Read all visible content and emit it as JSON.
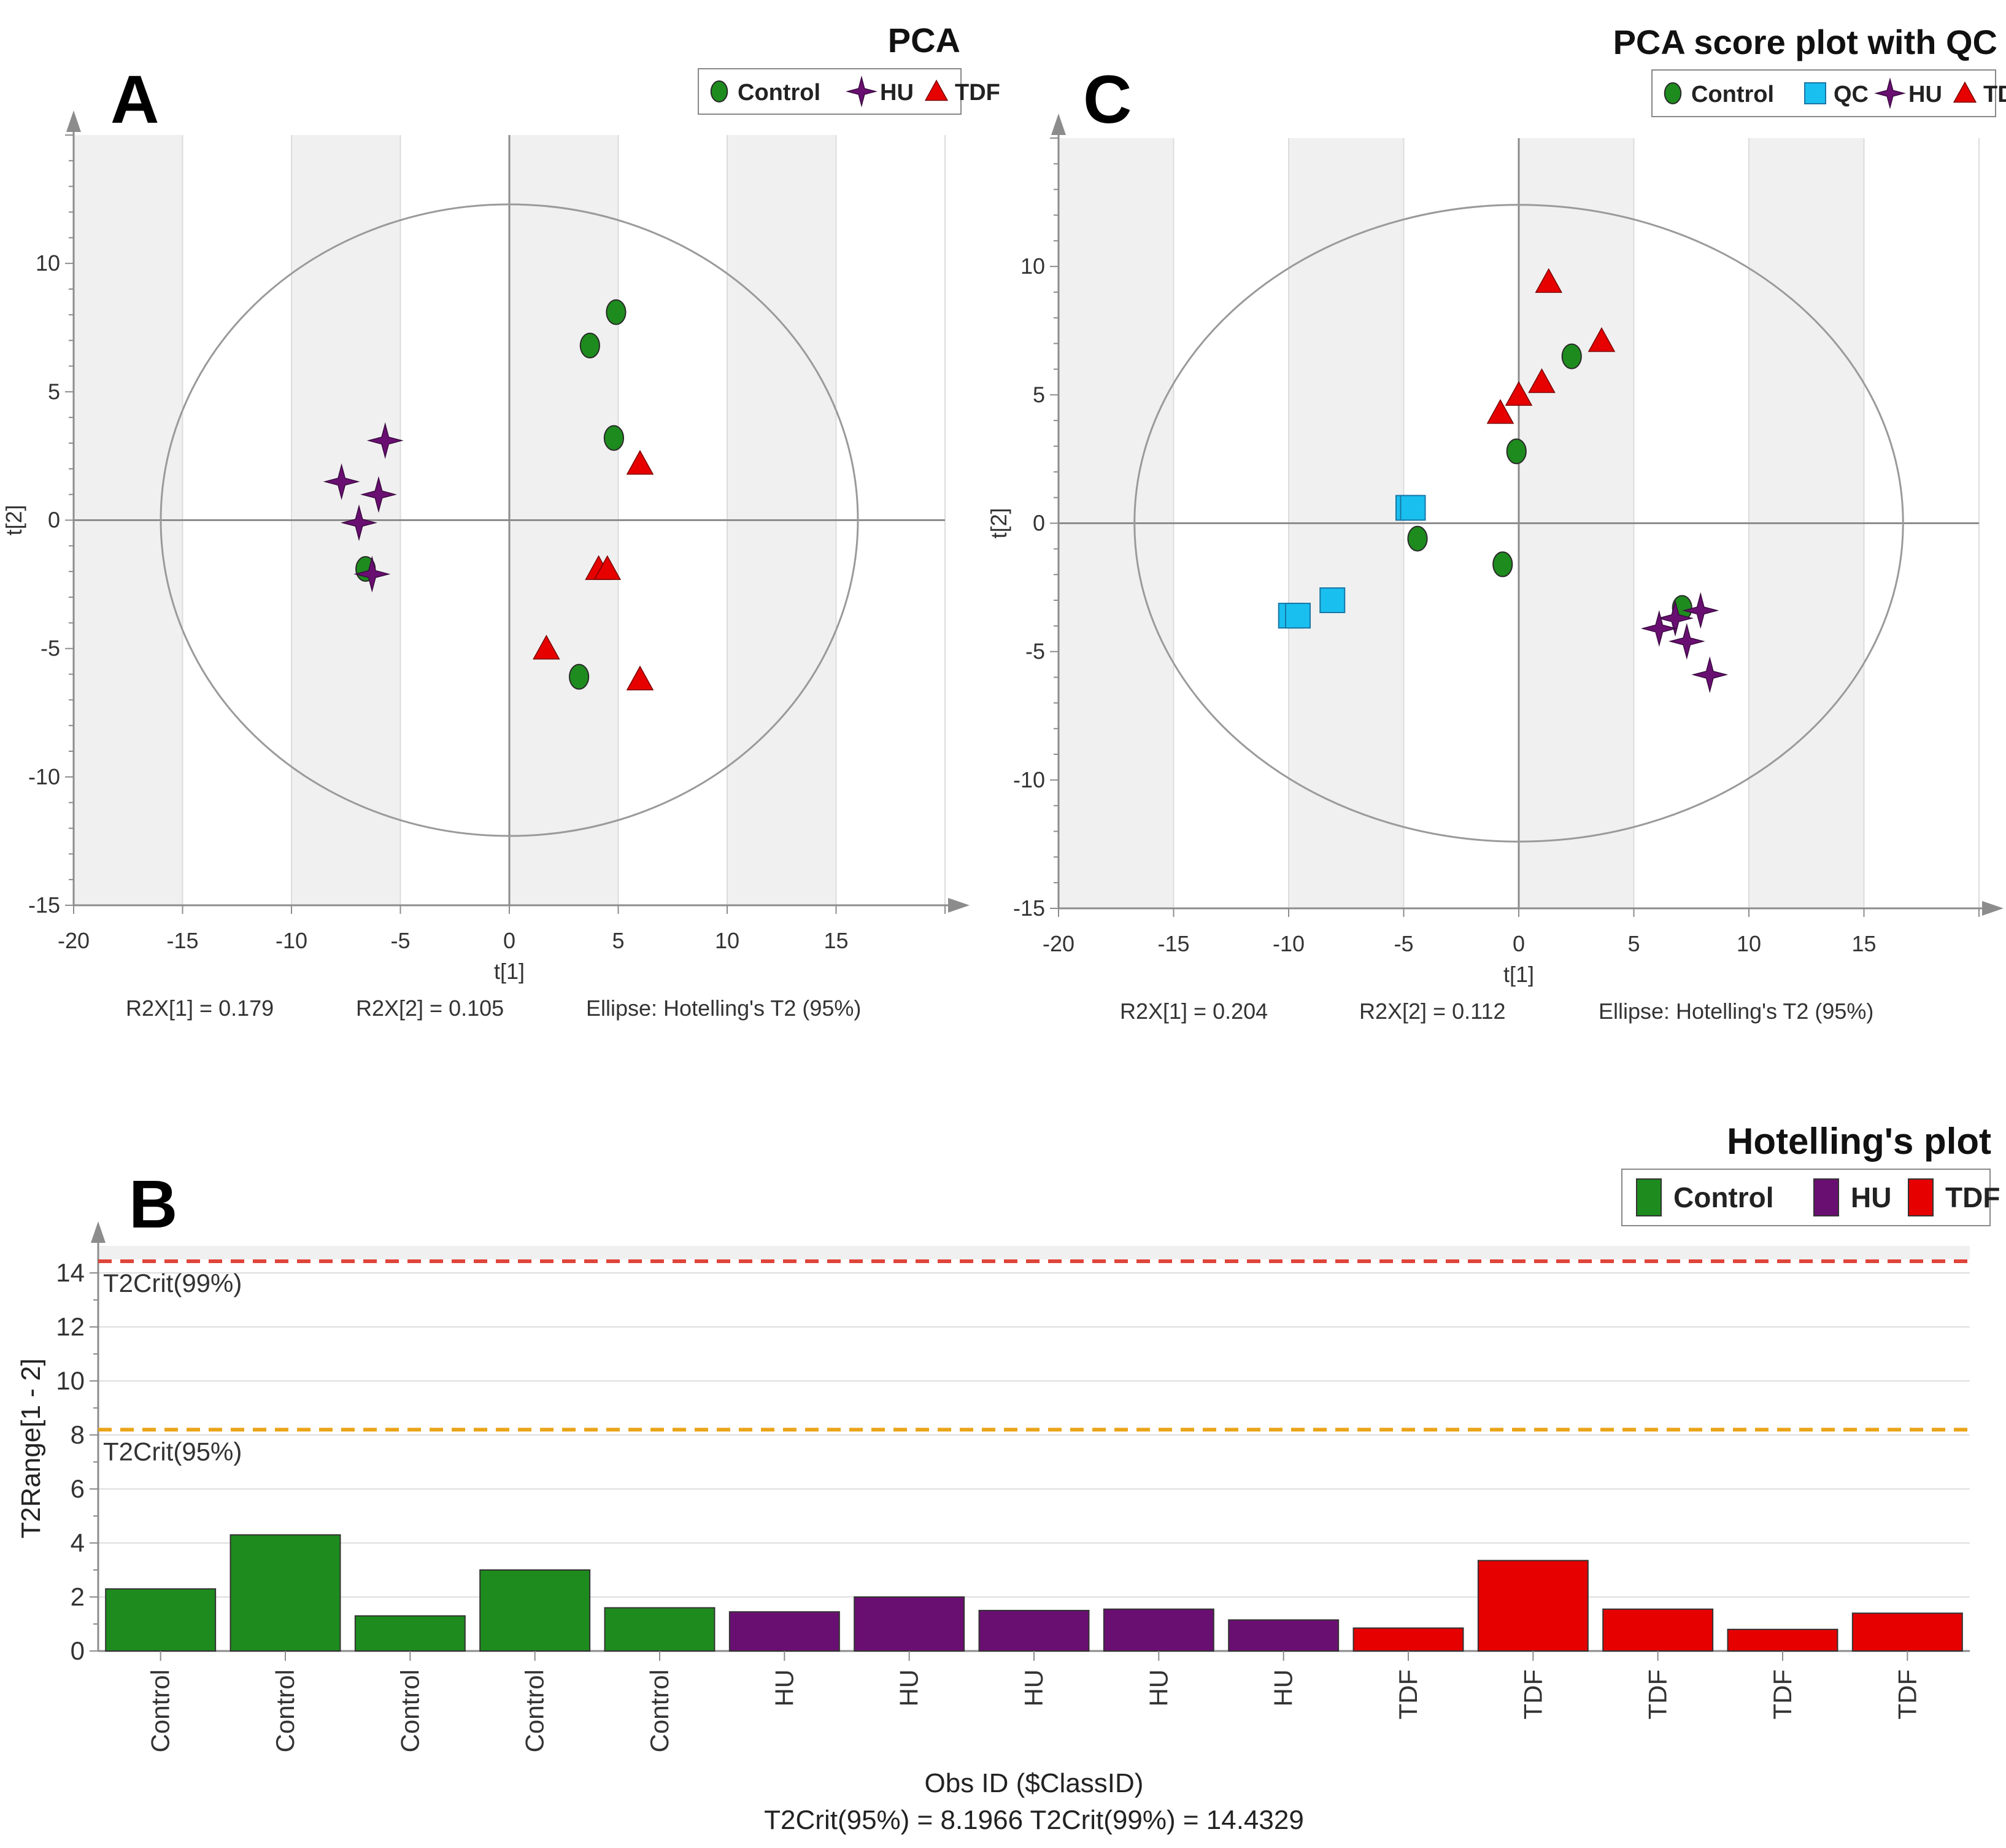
{
  "figure": {
    "panel_a_letter": "A",
    "panel_b_letter": "B",
    "panel_c_letter": "C"
  },
  "colors": {
    "control": "#1e8b1e",
    "hu": "#6a0f72",
    "tdf": "#e60000",
    "qc": "#19bfef",
    "ellipse": "#9a9a9a",
    "plot_bg": "#f0f0f0",
    "axis": "#8c8c8c",
    "crit99": "#e0443a",
    "crit95": "#eba418"
  },
  "chart_data": [
    {
      "id": "A",
      "type": "scatter",
      "title": "PCA",
      "xlabel": "t[1]",
      "ylabel": "t[2]",
      "xlim": [
        -20,
        20
      ],
      "ylim": [
        -15,
        15
      ],
      "xticks": [
        -20,
        -15,
        -10,
        -5,
        0,
        5,
        10,
        15
      ],
      "yticks": [
        -15,
        -10,
        -5,
        0,
        5,
        10
      ],
      "ellipse": {
        "rx": 16.0,
        "ry": 12.3
      },
      "legend": [
        {
          "label": "Control",
          "marker": "circle",
          "group": "control"
        },
        {
          "label": "HU",
          "marker": "star",
          "group": "hu"
        },
        {
          "label": "TDF",
          "marker": "triangle",
          "group": "tdf"
        }
      ],
      "series": [
        {
          "name": "Control",
          "group": "control",
          "marker": "circle",
          "points": [
            [
              4.9,
              8.1
            ],
            [
              3.7,
              6.8
            ],
            [
              4.8,
              3.2
            ],
            [
              3.2,
              -6.1
            ],
            [
              -6.6,
              -1.9
            ]
          ]
        },
        {
          "name": "HU",
          "group": "hu",
          "marker": "star",
          "points": [
            [
              -5.7,
              3.1
            ],
            [
              -7.7,
              1.5
            ],
            [
              -6.0,
              1.0
            ],
            [
              -6.9,
              -0.1
            ],
            [
              -6.3,
              -2.1
            ]
          ]
        },
        {
          "name": "TDF",
          "group": "tdf",
          "marker": "triangle",
          "points": [
            [
              6.0,
              2.2
            ],
            [
              4.1,
              -1.9
            ],
            [
              4.5,
              -1.9
            ],
            [
              1.7,
              -5.0
            ],
            [
              6.0,
              -6.2
            ]
          ]
        }
      ],
      "footer": [
        "R2X[1] = 0.179",
        "R2X[2] = 0.105",
        "Ellipse: Hotelling's T2 (95%)"
      ]
    },
    {
      "id": "C",
      "type": "scatter",
      "title": "PCA score plot with QC",
      "xlabel": "t[1]",
      "ylabel": "t[2]",
      "xlim": [
        -20,
        20
      ],
      "ylim": [
        -15,
        15
      ],
      "xticks": [
        -20,
        -15,
        -10,
        -5,
        0,
        5,
        10,
        15
      ],
      "yticks": [
        -15,
        -10,
        -5,
        0,
        5,
        10
      ],
      "ellipse": {
        "rx": 16.7,
        "ry": 12.4
      },
      "legend": [
        {
          "label": "Control",
          "marker": "circle",
          "group": "control"
        },
        {
          "label": "QC",
          "marker": "square",
          "group": "qc"
        },
        {
          "label": "HU",
          "marker": "star",
          "group": "hu"
        },
        {
          "label": "TDF",
          "marker": "triangle",
          "group": "tdf"
        }
      ],
      "series": [
        {
          "name": "Control",
          "group": "control",
          "marker": "circle",
          "points": [
            [
              2.3,
              6.5
            ],
            [
              -0.1,
              2.8
            ],
            [
              -4.4,
              -0.6
            ],
            [
              -0.7,
              -1.6
            ],
            [
              7.1,
              -3.3
            ]
          ]
        },
        {
          "name": "QC",
          "group": "qc",
          "marker": "square",
          "points": [
            [
              -4.8,
              0.6
            ],
            [
              -4.6,
              0.6
            ],
            [
              -9.9,
              -3.6
            ],
            [
              -9.6,
              -3.6
            ],
            [
              -8.1,
              -3.0
            ]
          ]
        },
        {
          "name": "HU",
          "group": "hu",
          "marker": "star",
          "points": [
            [
              7.9,
              -3.4
            ],
            [
              6.8,
              -3.7
            ],
            [
              6.1,
              -4.1
            ],
            [
              7.3,
              -4.6
            ],
            [
              8.3,
              -5.9
            ]
          ]
        },
        {
          "name": "TDF",
          "group": "tdf",
          "marker": "triangle",
          "points": [
            [
              1.3,
              9.4
            ],
            [
              3.6,
              7.1
            ],
            [
              1.0,
              5.5
            ],
            [
              0.0,
              5.0
            ],
            [
              -0.8,
              4.3
            ]
          ]
        }
      ],
      "footer": [
        "R2X[1] = 0.204",
        "R2X[2] = 0.112",
        "Ellipse: Hotelling's T2 (95%)"
      ]
    },
    {
      "id": "B",
      "type": "bar",
      "title": "Hotelling's plot",
      "xlabel": "Obs ID ($ClassID)",
      "ylabel": "T2Range[1 - 2]",
      "ylim": [
        0,
        15
      ],
      "yticks": [
        0,
        2,
        4,
        6,
        8,
        10,
        12,
        14
      ],
      "legend": [
        {
          "label": "Control",
          "group": "control"
        },
        {
          "label": "HU",
          "group": "hu"
        },
        {
          "label": "TDF",
          "group": "tdf"
        }
      ],
      "categories": [
        "Control",
        "Control",
        "Control",
        "Control",
        "Control",
        "HU",
        "HU",
        "HU",
        "HU",
        "HU",
        "TDF",
        "TDF",
        "TDF",
        "TDF",
        "TDF"
      ],
      "groups": [
        "control",
        "control",
        "control",
        "control",
        "control",
        "hu",
        "hu",
        "hu",
        "hu",
        "hu",
        "tdf",
        "tdf",
        "tdf",
        "tdf",
        "tdf"
      ],
      "values": [
        2.3,
        4.3,
        1.3,
        3.0,
        1.6,
        1.45,
        2.0,
        1.5,
        1.55,
        1.15,
        0.85,
        3.35,
        1.55,
        0.8,
        1.4
      ],
      "thresholds": [
        {
          "label": "T2Crit(99%)",
          "value": 14.4329,
          "group": "crit99"
        },
        {
          "label": "T2Crit(95%)",
          "value": 8.1966,
          "group": "crit95"
        }
      ],
      "footer": "T2Crit(95%) = 8.1966   T2Crit(99%) = 14.4329"
    }
  ]
}
